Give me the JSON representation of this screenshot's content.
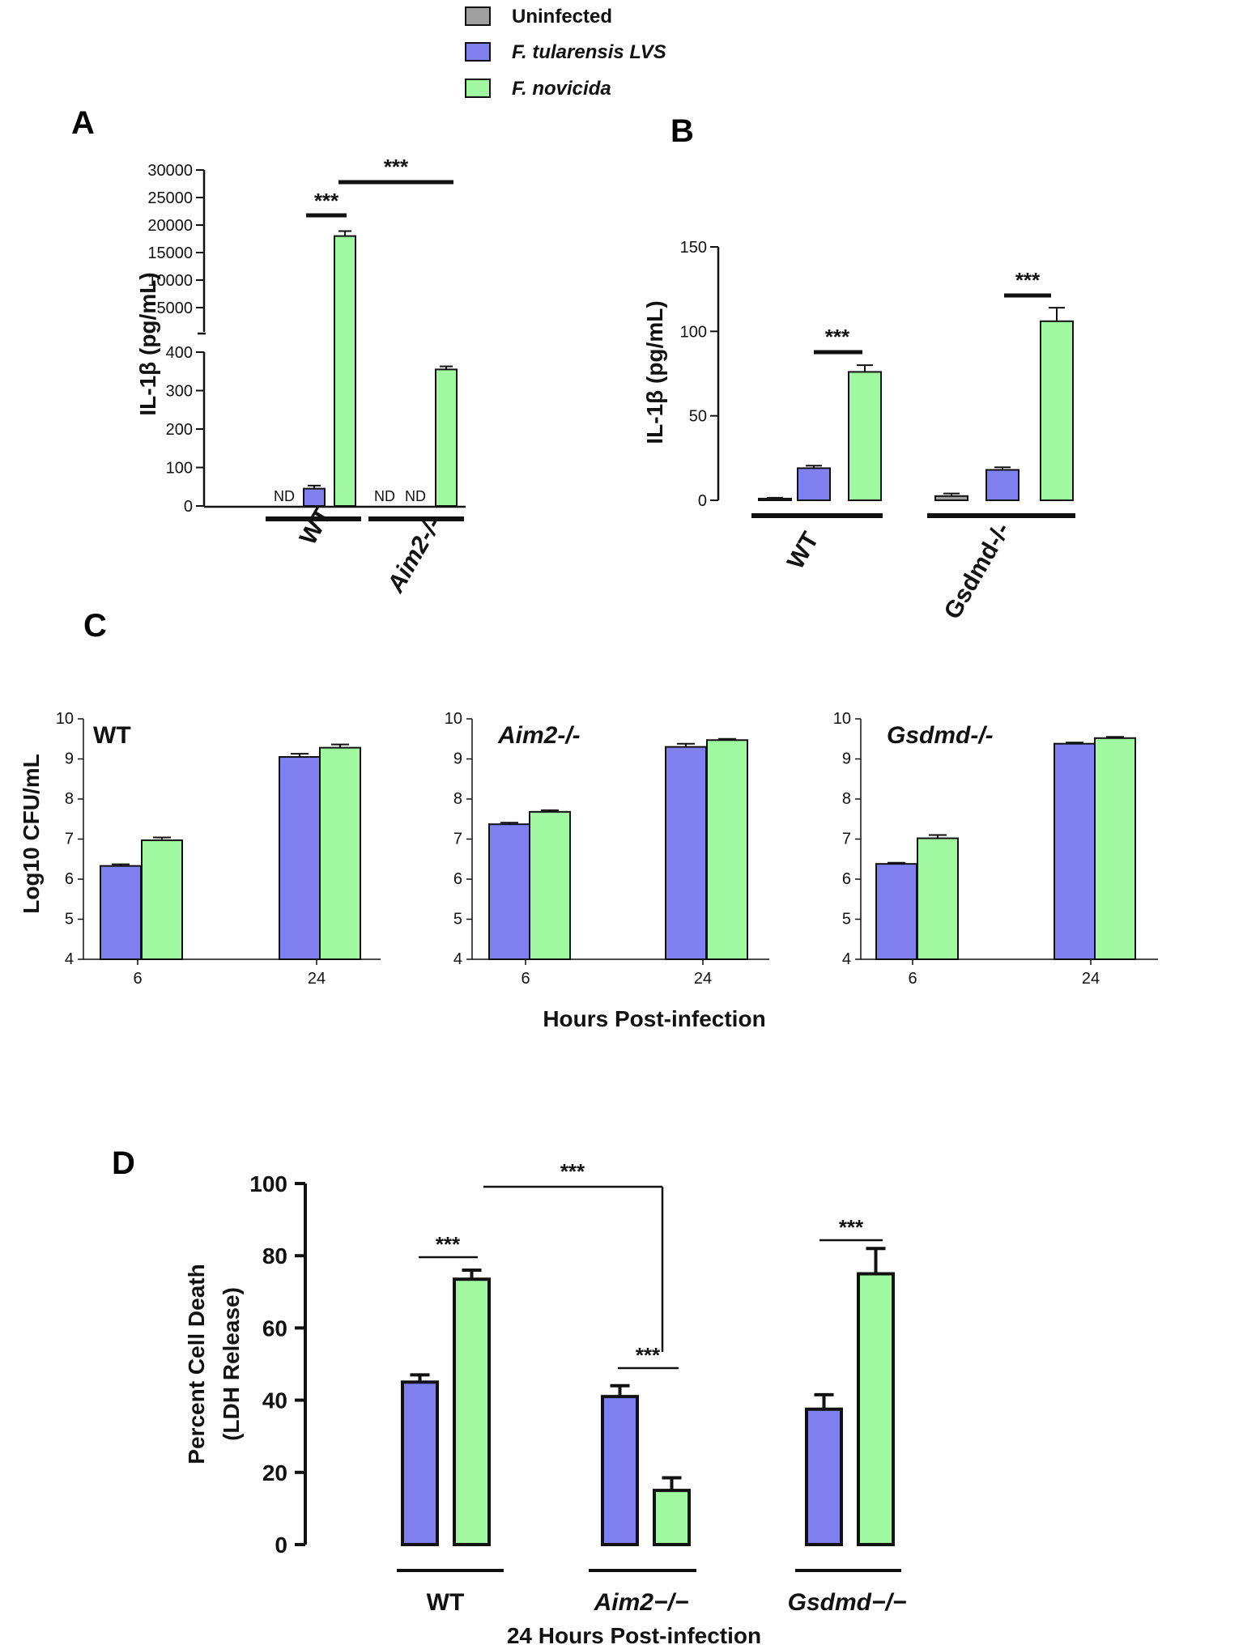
{
  "colors": {
    "uninfected": "#a0a0a0",
    "lvs": "#8080f0",
    "novicida": "#a0f8a0",
    "axis": "#111111"
  },
  "legend": [
    {
      "key": "uninfected",
      "label": "Uninfected"
    },
    {
      "key": "lvs",
      "label": "F. tularensis LVS"
    },
    {
      "key": "novicida",
      "label": "F. novicida"
    }
  ],
  "panels": {
    "A": {
      "letter": "A",
      "ylabel": "IL-1β (pg/mL)",
      "nd_label": "ND",
      "sig_label": "***",
      "genotypes": [
        "WT",
        "Aim2-/-"
      ]
    },
    "B": {
      "letter": "B",
      "ylabel": "IL-1β (pg/mL)",
      "sig_label": "***",
      "genotypes": [
        "WT",
        "Gsdmd-/-"
      ]
    },
    "C": {
      "letter": "C",
      "ylabel": "Log10 CFU/mL",
      "xlabel": "Hours Post-infection",
      "titles": [
        "WT",
        "Aim2-/-",
        "Gsdmd-/-"
      ]
    },
    "D": {
      "letter": "D",
      "ylabel_line1": "Percent Cell Death",
      "ylabel_line2": "(LDH Release)",
      "xlabel": "24 Hours Post-infection",
      "sig_label": "***",
      "genotypes": [
        "WT",
        "Aim2−/−",
        "Gsdmd−/−"
      ]
    }
  },
  "chart_data": [
    {
      "id": "A",
      "type": "bar",
      "title": "A",
      "ylabel": "IL-1β (pg/mL)",
      "y_axis": "broken",
      "ylim_lower": [
        0,
        400
      ],
      "ylim_upper": [
        5000,
        30000
      ],
      "yticks_lower": [
        0,
        100,
        200,
        300,
        400
      ],
      "yticks_upper": [
        5000,
        10000,
        15000,
        20000,
        25000,
        30000
      ],
      "categories": [
        "WT",
        "Aim2-/-"
      ],
      "series": [
        {
          "name": "Uninfected",
          "values": [
            null,
            null
          ],
          "errors": [
            null,
            null
          ],
          "labels": [
            "ND",
            "ND"
          ]
        },
        {
          "name": "F. tularensis LVS",
          "values": [
            45,
            null
          ],
          "errors": [
            8,
            null
          ],
          "labels": [
            "",
            "ND"
          ]
        },
        {
          "name": "F. novicida",
          "values": [
            18000,
            355
          ],
          "errors": [
            900,
            8
          ],
          "labels": [
            "",
            ""
          ]
        }
      ],
      "significance": [
        {
          "between": "WT LVS vs WT F. novicida",
          "label": "***"
        },
        {
          "between": "WT F. novicida vs Aim2-/- F. novicida",
          "label": "***"
        }
      ]
    },
    {
      "id": "B",
      "type": "bar",
      "title": "B",
      "ylabel": "IL-1β (pg/mL)",
      "ylim": [
        0,
        150
      ],
      "yticks": [
        0,
        50,
        100,
        150
      ],
      "categories": [
        "WT",
        "Gsdmd-/-"
      ],
      "series": [
        {
          "name": "Uninfected",
          "values": [
            1,
            2.5
          ],
          "errors": [
            0.5,
            1.5
          ]
        },
        {
          "name": "F. tularensis LVS",
          "values": [
            19,
            18
          ],
          "errors": [
            1.5,
            1.5
          ]
        },
        {
          "name": "F. novicida",
          "values": [
            76,
            106
          ],
          "errors": [
            4,
            8
          ]
        }
      ],
      "significance": [
        {
          "between": "WT LVS vs WT F. novicida",
          "label": "***"
        },
        {
          "between": "Gsdmd-/- LVS vs Gsdmd-/- F. novicida",
          "label": "***"
        }
      ]
    },
    {
      "id": "C1",
      "type": "bar",
      "title": "WT",
      "ylabel": "Log10 CFU/mL",
      "xlabel": "Hours Post-infection",
      "ylim": [
        4,
        10
      ],
      "yticks": [
        4,
        5,
        6,
        7,
        8,
        9,
        10
      ],
      "categories": [
        "6",
        "24"
      ],
      "series": [
        {
          "name": "F. tularensis LVS",
          "values": [
            6.33,
            9.05
          ],
          "errors": [
            0.04,
            0.08
          ]
        },
        {
          "name": "F. novicida",
          "values": [
            6.97,
            9.28
          ],
          "errors": [
            0.07,
            0.08
          ]
        }
      ]
    },
    {
      "id": "C2",
      "type": "bar",
      "title": "Aim2-/-",
      "ylabel": "Log10 CFU/mL",
      "xlabel": "Hours Post-infection",
      "ylim": [
        4,
        10
      ],
      "yticks": [
        4,
        5,
        6,
        7,
        8,
        9,
        10
      ],
      "categories": [
        "6",
        "24"
      ],
      "series": [
        {
          "name": "F. tularensis LVS",
          "values": [
            7.37,
            9.3
          ],
          "errors": [
            0.04,
            0.08
          ]
        },
        {
          "name": "F. novicida",
          "values": [
            7.68,
            9.47
          ],
          "errors": [
            0.04,
            0.03
          ]
        }
      ]
    },
    {
      "id": "C3",
      "type": "bar",
      "title": "Gsdmd-/-",
      "ylabel": "Log10 CFU/mL",
      "xlabel": "Hours Post-infection",
      "ylim": [
        4,
        10
      ],
      "yticks": [
        4,
        5,
        6,
        7,
        8,
        9,
        10
      ],
      "categories": [
        "6",
        "24"
      ],
      "series": [
        {
          "name": "F. tularensis LVS",
          "values": [
            6.38,
            9.38
          ],
          "errors": [
            0.03,
            0.03
          ]
        },
        {
          "name": "F. novicida",
          "values": [
            7.02,
            9.52
          ],
          "errors": [
            0.08,
            0.03
          ]
        }
      ]
    },
    {
      "id": "D",
      "type": "bar",
      "title": "D",
      "ylabel": "Percent Cell Death (LDH Release)",
      "xlabel": "24 Hours Post-infection",
      "ylim": [
        0,
        100
      ],
      "yticks": [
        0,
        20,
        40,
        60,
        80,
        100
      ],
      "categories": [
        "WT",
        "Aim2−/−",
        "Gsdmd−/−"
      ],
      "series": [
        {
          "name": "F. tularensis LVS",
          "values": [
            45,
            41,
            37.5
          ],
          "errors": [
            2,
            3,
            4
          ]
        },
        {
          "name": "F. novicida",
          "values": [
            73.5,
            15,
            75
          ],
          "errors": [
            2.5,
            3.5,
            7
          ]
        }
      ],
      "significance": [
        {
          "between": "WT LVS vs WT F. novicida",
          "label": "***"
        },
        {
          "between": "WT F. novicida vs Aim2-/- F. novicida",
          "label": "***"
        },
        {
          "between": "Aim2-/- LVS vs Aim2-/- F. novicida",
          "label": "***"
        },
        {
          "between": "Gsdmd-/- LVS vs Gsdmd-/- F. novicida",
          "label": "***"
        }
      ]
    }
  ]
}
